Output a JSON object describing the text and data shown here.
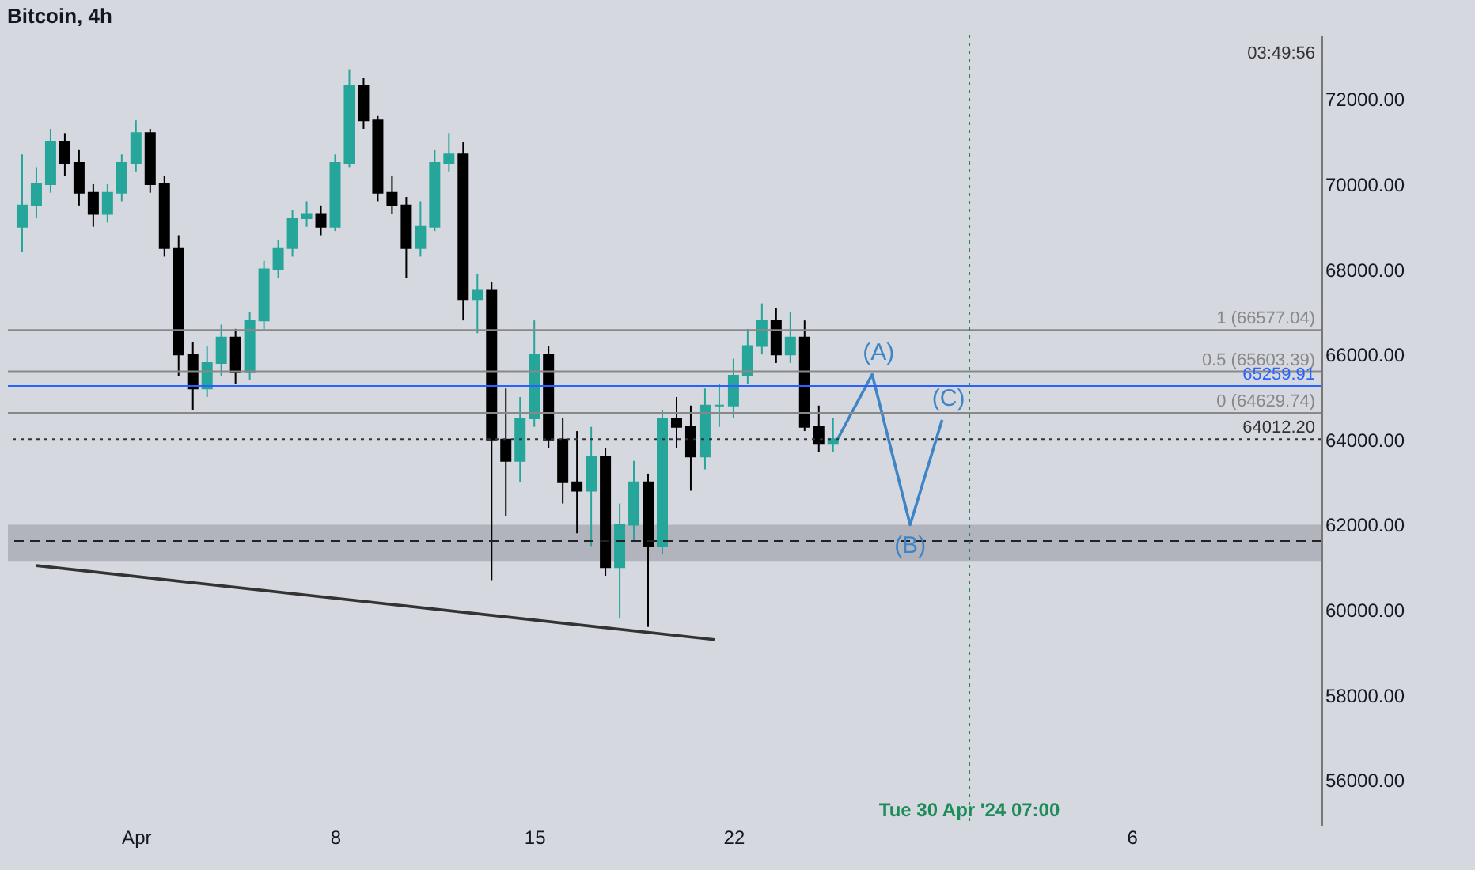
{
  "chart_data": {
    "type": "candlestick",
    "title": "Bitcoin, 4h",
    "xlim": [
      "2024-03-27T12:00",
      "2024-05-12T16:00"
    ],
    "xticks": [
      {
        "value": "2024-04-01T00:00",
        "label": "Apr"
      },
      {
        "value": "2024-04-08T00:00",
        "label": "8"
      },
      {
        "value": "2024-04-15T00:00",
        "label": "15"
      },
      {
        "value": "2024-04-22T00:00",
        "label": "22"
      },
      {
        "value": "2024-05-06T00:00",
        "label": "6"
      }
    ],
    "ylim": [
      54930,
      73510
    ],
    "yticks": [
      {
        "value": 56000,
        "label": "56000.00"
      },
      {
        "value": 58000,
        "label": "58000.00"
      },
      {
        "value": 60000,
        "label": "60000.00"
      },
      {
        "value": 62000,
        "label": "62000.00"
      },
      {
        "value": 64000,
        "label": "64000.00"
      },
      {
        "value": 66000,
        "label": "66000.00"
      },
      {
        "value": 68000,
        "label": "68000.00"
      },
      {
        "value": 70000,
        "label": "70000.00"
      },
      {
        "value": 72000,
        "label": "72000.00"
      }
    ],
    "grid": false,
    "series": [
      {
        "x": [
          "2024-03-28T00:00",
          "2024-03-28T12:00",
          "2024-03-29T00:00",
          "2024-03-29T12:00",
          "2024-03-30T00:00",
          "2024-03-30T12:00",
          "2024-03-31T00:00",
          "2024-03-31T12:00",
          "2024-04-01T00:00",
          "2024-04-01T12:00",
          "2024-04-02T00:00",
          "2024-04-02T12:00",
          "2024-04-03T00:00",
          "2024-04-03T12:00",
          "2024-04-04T00:00",
          "2024-04-04T12:00",
          "2024-04-05T00:00",
          "2024-04-05T12:00",
          "2024-04-06T00:00",
          "2024-04-06T12:00",
          "2024-04-07T00:00",
          "2024-04-07T12:00",
          "2024-04-08T00:00",
          "2024-04-08T12:00",
          "2024-04-09T00:00",
          "2024-04-09T12:00",
          "2024-04-10T00:00",
          "2024-04-10T12:00",
          "2024-04-11T00:00",
          "2024-04-11T12:00",
          "2024-04-12T00:00",
          "2024-04-12T12:00",
          "2024-04-13T00:00",
          "2024-04-13T12:00",
          "2024-04-14T00:00",
          "2024-04-14T12:00",
          "2024-04-15T00:00",
          "2024-04-15T12:00",
          "2024-04-16T00:00",
          "2024-04-16T12:00",
          "2024-04-17T00:00",
          "2024-04-17T12:00",
          "2024-04-18T00:00",
          "2024-04-18T12:00",
          "2024-04-19T00:00",
          "2024-04-19T12:00",
          "2024-04-20T00:00",
          "2024-04-20T12:00",
          "2024-04-21T00:00",
          "2024-04-21T12:00",
          "2024-04-22T00:00",
          "2024-04-22T12:00",
          "2024-04-23T00:00",
          "2024-04-23T12:00",
          "2024-04-24T00:00",
          "2024-04-24T12:00",
          "2024-04-25T00:00",
          "2024-04-25T12:00"
        ],
        "ohlc": [
          [
            69000,
            70700,
            68400,
            69500
          ],
          [
            69500,
            70400,
            69200,
            70000
          ],
          [
            70000,
            71300,
            69800,
            71000
          ],
          [
            71000,
            71200,
            70200,
            70500
          ],
          [
            70500,
            70800,
            69500,
            69800
          ],
          [
            69800,
            70000,
            69000,
            69300
          ],
          [
            69300,
            70000,
            69100,
            69800
          ],
          [
            69800,
            70700,
            69600,
            70500
          ],
          [
            70500,
            71500,
            70300,
            71200
          ],
          [
            71200,
            71300,
            69800,
            70000
          ],
          [
            70000,
            70200,
            68300,
            68500
          ],
          [
            68500,
            68800,
            65500,
            66000
          ],
          [
            66000,
            66300,
            64700,
            65200
          ],
          [
            65200,
            66200,
            65000,
            65800
          ],
          [
            65800,
            66700,
            65500,
            66400
          ],
          [
            66400,
            66600,
            65300,
            65600
          ],
          [
            65600,
            67000,
            65400,
            66800
          ],
          [
            66800,
            68200,
            66600,
            68000
          ],
          [
            68000,
            68700,
            67800,
            68500
          ],
          [
            68500,
            69400,
            68300,
            69200
          ],
          [
            69200,
            69600,
            69000,
            69300
          ],
          [
            69300,
            69500,
            68800,
            69000
          ],
          [
            69000,
            70700,
            68900,
            70500
          ],
          [
            70500,
            72700,
            70400,
            72300
          ],
          [
            72300,
            72500,
            71300,
            71500
          ],
          [
            71500,
            71600,
            69600,
            69800
          ],
          [
            69800,
            70200,
            69300,
            69500
          ],
          [
            69500,
            69700,
            67800,
            68500
          ],
          [
            68500,
            69600,
            68300,
            69000
          ],
          [
            69000,
            70800,
            68900,
            70500
          ],
          [
            70500,
            71200,
            70300,
            70700
          ],
          [
            70700,
            71000,
            66800,
            67300
          ],
          [
            67300,
            67900,
            66500,
            67500
          ],
          [
            67500,
            67700,
            60700,
            64000
          ],
          [
            64000,
            65200,
            62200,
            63500
          ],
          [
            63500,
            65000,
            63000,
            64500
          ],
          [
            64500,
            66800,
            64300,
            66000
          ],
          [
            66000,
            66200,
            63800,
            64000
          ],
          [
            64000,
            64500,
            62500,
            63000
          ],
          [
            63000,
            64200,
            61800,
            62800
          ],
          [
            62800,
            64300,
            61500,
            63600
          ],
          [
            63600,
            63800,
            60800,
            61000
          ],
          [
            61000,
            62500,
            59800,
            62000
          ],
          [
            62000,
            63500,
            61600,
            63000
          ],
          [
            63000,
            63200,
            59600,
            61500
          ],
          [
            61500,
            64700,
            61300,
            64500
          ],
          [
            64500,
            65000,
            63800,
            64300
          ],
          [
            64300,
            64800,
            62800,
            63600
          ],
          [
            63600,
            65200,
            63300,
            64800
          ],
          [
            64800,
            65300,
            64300,
            64800
          ],
          [
            64800,
            65900,
            64500,
            65500
          ],
          [
            65500,
            66600,
            65300,
            66200
          ],
          [
            66200,
            67200,
            66000,
            66800
          ],
          [
            66800,
            67100,
            65800,
            66000
          ],
          [
            66000,
            67000,
            65800,
            66400
          ],
          [
            66400,
            66800,
            64200,
            64300
          ],
          [
            64300,
            64800,
            63700,
            63900
          ],
          [
            63900,
            64500,
            63700,
            64012.2
          ]
        ],
        "colors": [
          "#26a69a",
          "#26a69a",
          "#26a69a",
          "#000000",
          "#000000",
          "#000000",
          "#26a69a",
          "#26a69a",
          "#26a69a",
          "#000000",
          "#000000",
          "#000000",
          "#000000",
          "#26a69a",
          "#26a69a",
          "#000000",
          "#26a69a",
          "#26a69a",
          "#26a69a",
          "#26a69a",
          "#26a69a",
          "#000000",
          "#26a69a",
          "#26a69a",
          "#000000",
          "#000000",
          "#000000",
          "#000000",
          "#26a69a",
          "#26a69a",
          "#26a69a",
          "#000000",
          "#26a69a",
          "#000000",
          "#000000",
          "#26a69a",
          "#26a69a",
          "#000000",
          "#000000",
          "#000000",
          "#26a69a",
          "#000000",
          "#26a69a",
          "#26a69a",
          "#000000",
          "#26a69a",
          "#000000",
          "#000000",
          "#26a69a",
          "#26a69a",
          "#26a69a",
          "#26a69a",
          "#26a69a",
          "#000000",
          "#26a69a",
          "#000000",
          "#000000",
          "#26a69a"
        ]
      },
      {
        "type": "line",
        "color": "#3d85c6",
        "x": [
          "2024-04-25T16:00",
          "2024-04-26T21:00",
          "2024-04-28T05:00",
          "2024-04-29T08:00"
        ],
        "values": [
          64020,
          65530,
          62000,
          64460
        ]
      },
      {
        "type": "line",
        "color": "#333333",
        "x": [
          "2024-03-28T12:00",
          "2024-04-21T08:00"
        ],
        "values": [
          61040,
          59300
        ]
      }
    ],
    "ref_lines": [
      {
        "axis": "y",
        "value": 66577.04,
        "label": "1 (66577.04)",
        "color": "#888888"
      },
      {
        "axis": "y",
        "value": 65603.39,
        "label": "0.5 (65603.39)",
        "color": "#888888"
      },
      {
        "axis": "y",
        "value": 65259.91,
        "label": "65259.91",
        "color": "#2962ff"
      },
      {
        "axis": "y",
        "value": 64629.74,
        "label": "0 (64629.74)",
        "color": "#888888"
      },
      {
        "axis": "y",
        "value": 64012.2,
        "label": "64012.20",
        "color": "#333333",
        "line_style": "dotted"
      },
      {
        "axis": "y",
        "value": 61620,
        "color": "#222222",
        "line_style": "dashed"
      },
      {
        "axis": "x",
        "value": "2024-04-30T07:00",
        "label": "Tue 30 Apr '24 07:00",
        "color": "#1e8c5a",
        "line_style": "dotted"
      }
    ],
    "bands": [
      {
        "axis": "y",
        "from": 61150,
        "to": 62000,
        "color": "#9598a1"
      }
    ],
    "annotations": [
      {
        "text": "(A)",
        "x": "2024-04-26T21:00",
        "y": 65530
      },
      {
        "text": "(B)",
        "x": "2024-04-28T05:00",
        "y": 62000
      },
      {
        "text": "(C)",
        "x": "2024-04-29T08:00",
        "y": 64460
      },
      "03:49:56"
    ]
  }
}
